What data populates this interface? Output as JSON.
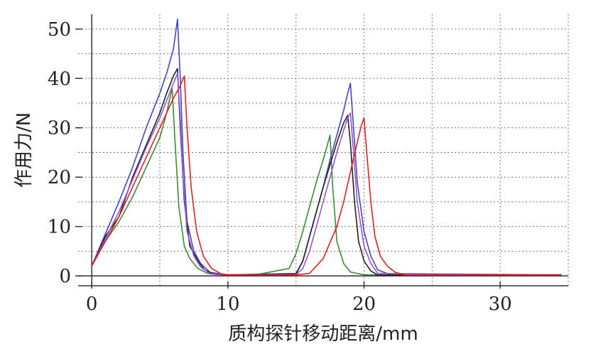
{
  "chart_data": {
    "type": "line",
    "title": "",
    "xlabel": "质构探针移动距离/mm",
    "ylabel": "作用力/N",
    "xlim": [
      -1,
      35
    ],
    "ylim": [
      -2,
      53
    ],
    "xticks": [
      0,
      10,
      20,
      30
    ],
    "yticks": [
      0,
      10,
      20,
      30,
      40,
      50
    ],
    "xtick_labels": [
      "0",
      "10",
      "20",
      "30"
    ],
    "ytick_labels": [
      "0",
      "10",
      "20",
      "30",
      "40",
      "50"
    ],
    "grid": true,
    "grid_x": [
      0,
      5,
      10,
      15,
      20,
      25,
      30,
      35
    ],
    "grid_y": [
      0,
      5,
      10,
      15,
      20,
      25,
      30,
      35,
      40,
      45,
      50
    ],
    "legend": "none",
    "series": [
      {
        "color": "#3a8a3a",
        "x": [
          0,
          1,
          2,
          3,
          4,
          5,
          5.5,
          5.9,
          6.1,
          6.4,
          6.8,
          7.2,
          7.8,
          8.5,
          9.5,
          12,
          14.5,
          15,
          15.5,
          16,
          16.5,
          17,
          17.3,
          17.5,
          17.7,
          18,
          18.5,
          19,
          20,
          25,
          34.5
        ],
        "y": [
          2,
          7,
          11,
          16,
          22,
          28,
          33,
          38,
          28,
          14,
          6,
          3.5,
          1.5,
          0.5,
          0.2,
          0.2,
          1.5,
          4.5,
          9,
          14,
          19,
          23.5,
          26.5,
          28.5,
          18,
          7,
          2.5,
          0.8,
          0.2,
          0.2,
          0.2
        ]
      },
      {
        "color": "#4444cc",
        "x": [
          0,
          1,
          2,
          3,
          4,
          5,
          5.5,
          6,
          6.3,
          6.5,
          6.7,
          7,
          7.5,
          8,
          8.7,
          10,
          15,
          15.5,
          16,
          16.5,
          17,
          17.5,
          18,
          18.5,
          18.8,
          19,
          19.2,
          19.5,
          20,
          20.5,
          21,
          22,
          34.5
        ],
        "y": [
          2,
          8.5,
          15,
          22,
          30,
          37,
          41,
          46,
          52,
          40,
          25,
          11,
          5,
          2.5,
          0.7,
          0.2,
          0.5,
          3,
          8,
          13,
          18,
          23.5,
          28.5,
          33.5,
          37,
          39,
          31,
          19,
          9,
          4,
          1.2,
          0.2,
          0.2
        ]
      },
      {
        "color": "#222222",
        "x": [
          0,
          1,
          2,
          3,
          4,
          5,
          5.5,
          6,
          6.3,
          6.5,
          6.8,
          7.2,
          7.8,
          8.3,
          9,
          10,
          15,
          15.5,
          16,
          16.5,
          17,
          17.5,
          18,
          18.5,
          18.8,
          19,
          19.3,
          19.6,
          20,
          20.5,
          21,
          34.5
        ],
        "y": [
          2,
          8,
          12,
          20,
          26.5,
          33,
          37,
          40.5,
          42,
          30,
          15,
          6,
          3,
          1.2,
          0.3,
          0.2,
          0.3,
          3,
          8,
          13,
          18,
          22.5,
          27,
          31,
          32.5,
          27,
          15,
          7,
          3,
          1,
          0.2,
          0.2
        ]
      },
      {
        "color": "#9955cc",
        "x": [
          0,
          1,
          2,
          3,
          4,
          5,
          5.5,
          6,
          6.3,
          6.5,
          6.7,
          7,
          7.5,
          8,
          8.7,
          10,
          15,
          15.5,
          16,
          16.5,
          17,
          17.5,
          18,
          18.5,
          18.8,
          19,
          19.2,
          19.5,
          20,
          20.5,
          21,
          34.5
        ],
        "y": [
          2,
          7.5,
          13,
          19.5,
          26,
          32,
          35.5,
          39,
          41,
          32,
          20,
          9,
          4,
          1.8,
          0.4,
          0.2,
          0.2,
          1.5,
          5,
          10,
          15,
          20,
          25,
          29.5,
          32,
          33,
          26,
          15,
          6,
          2.5,
          0.5,
          0.2
        ]
      },
      {
        "color": "#e02020",
        "x": [
          0,
          1,
          2,
          3,
          4,
          5,
          5.5,
          6,
          6.5,
          6.8,
          7,
          7.3,
          7.7,
          8.2,
          8.8,
          9.5,
          10,
          15,
          16,
          17,
          18,
          18.5,
          19,
          19.5,
          19.8,
          20,
          20.2,
          20.5,
          20.8,
          21.2,
          21.7,
          22.3,
          23,
          34.5
        ],
        "y": [
          2,
          7,
          12,
          18,
          24,
          30,
          33,
          36,
          38.5,
          40.5,
          30,
          18,
          9,
          4,
          1.5,
          0.4,
          0.2,
          0.2,
          0.5,
          3.5,
          10,
          15,
          21,
          27,
          30.5,
          32,
          25,
          15,
          8,
          4,
          2,
          0.7,
          0.2,
          0.2
        ]
      }
    ]
  }
}
